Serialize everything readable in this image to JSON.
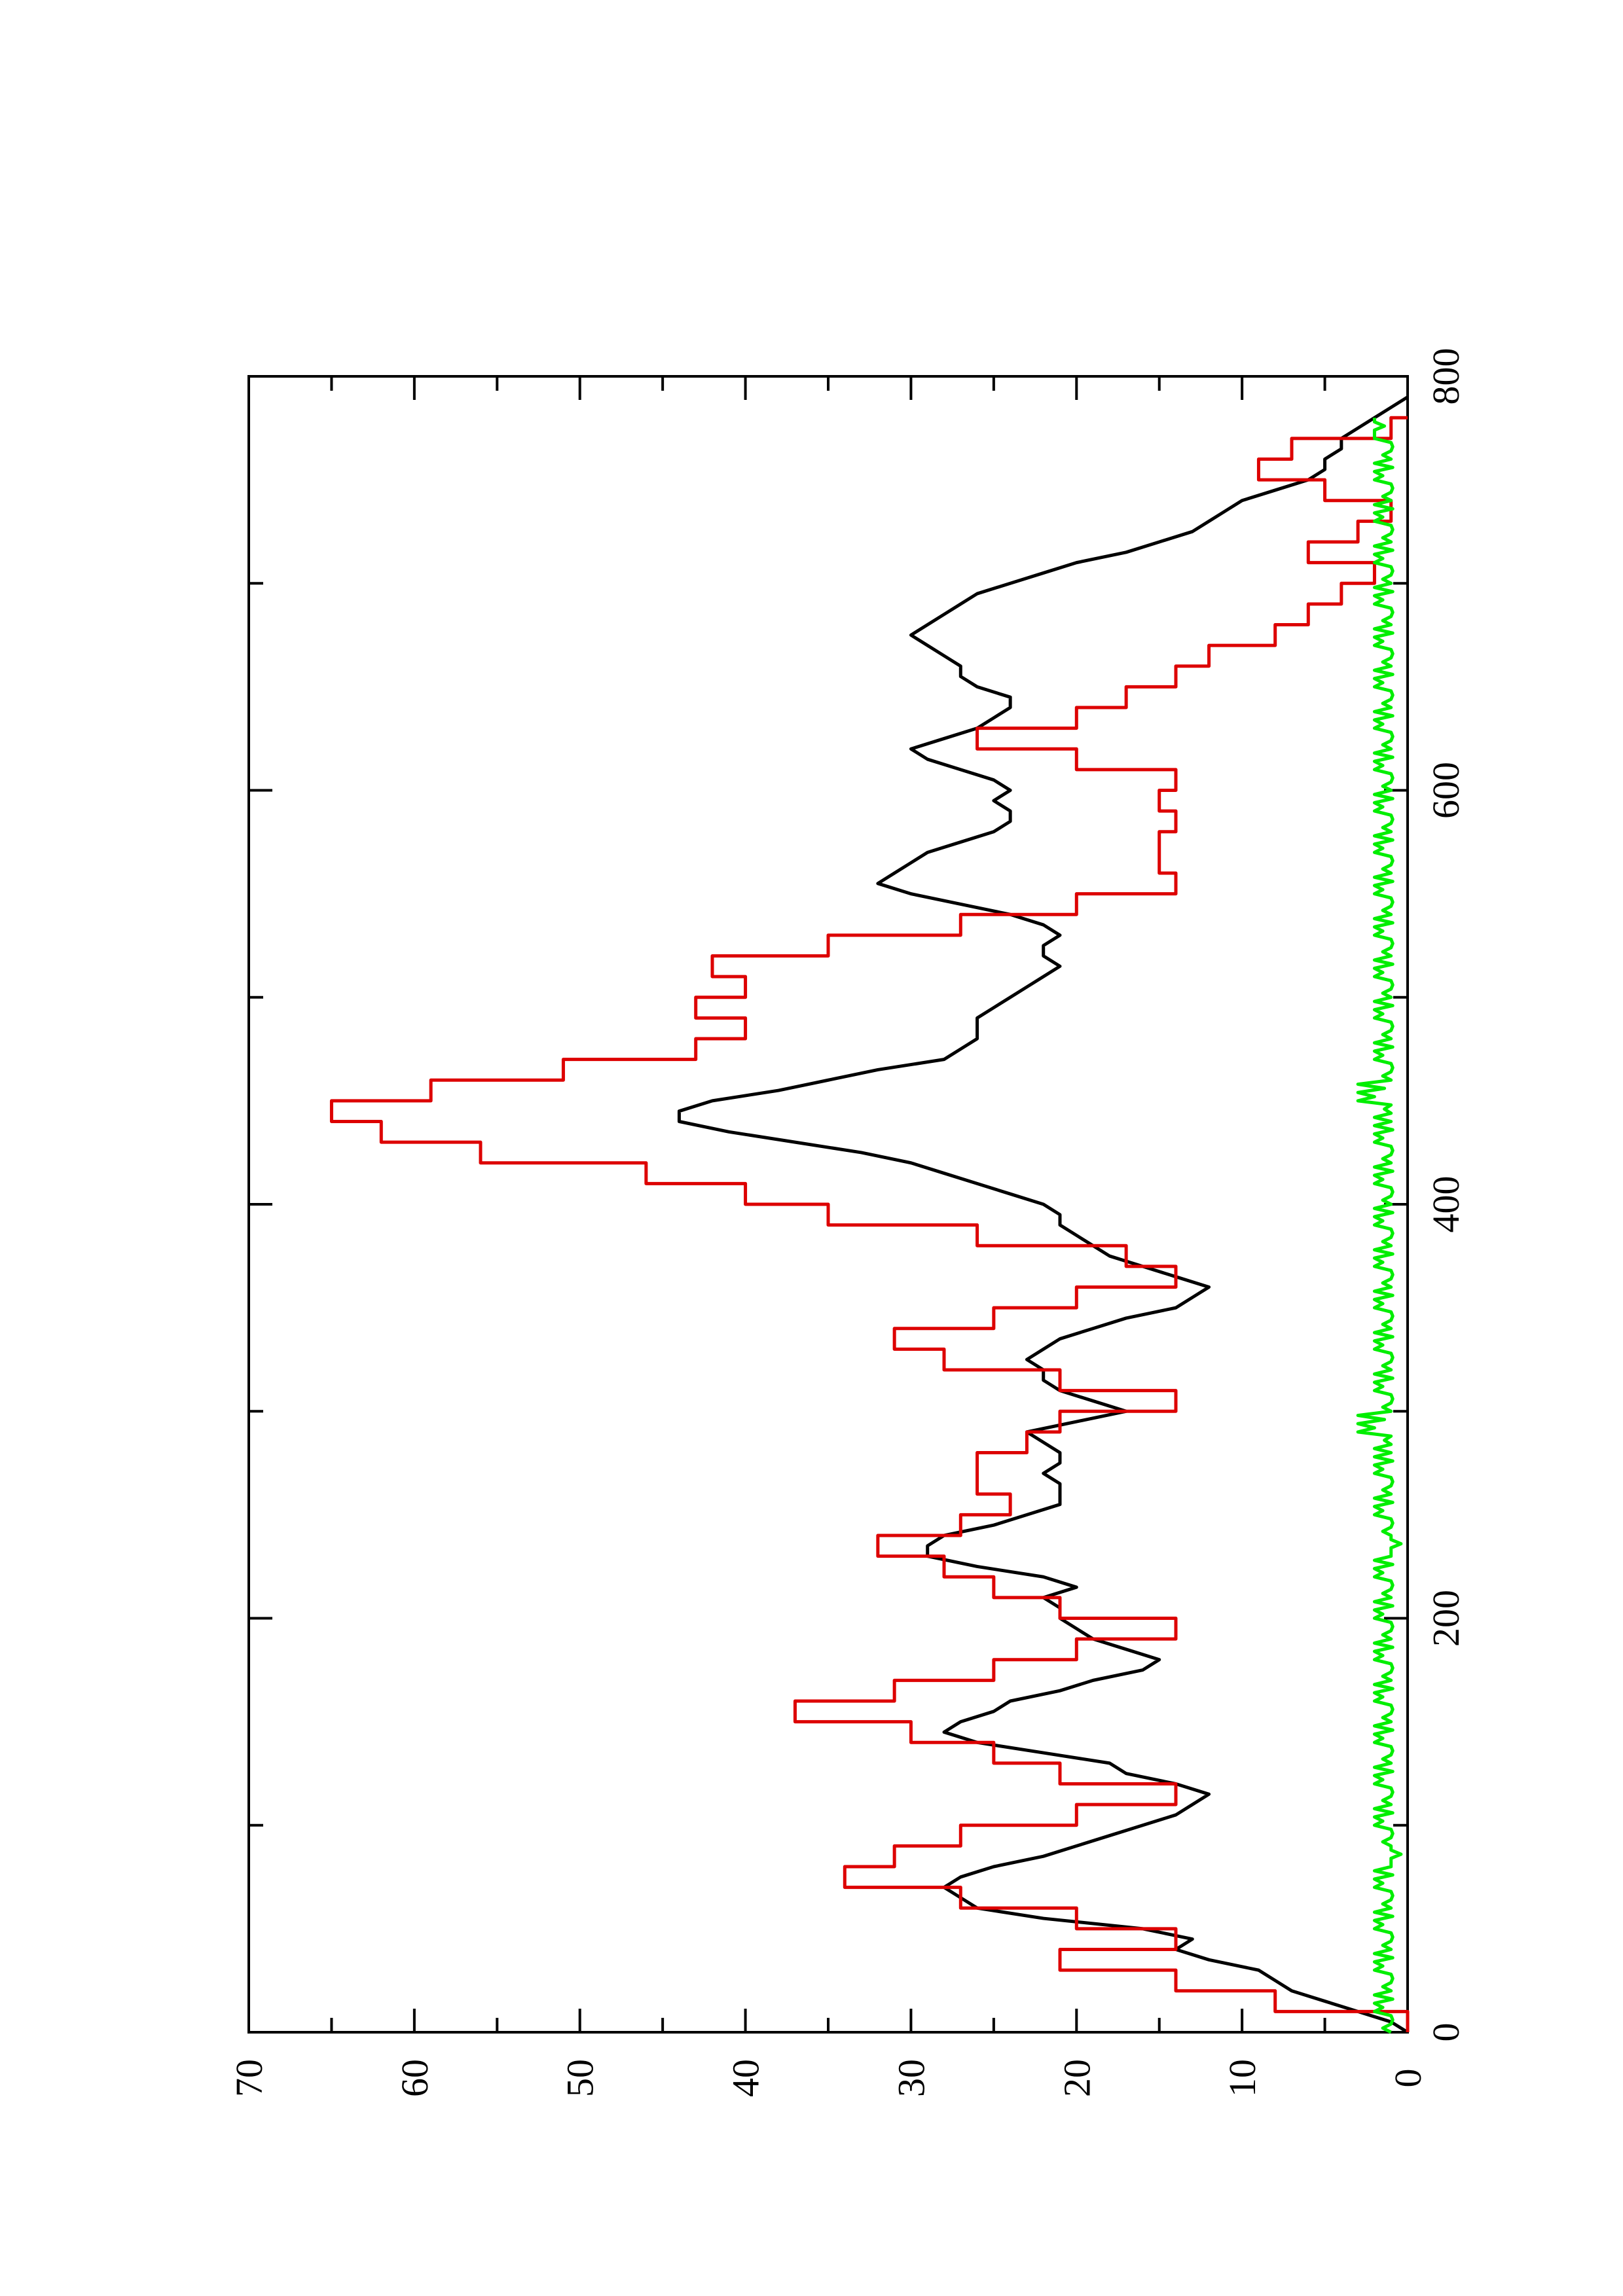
{
  "chart_data": {
    "type": "line",
    "orientation": "rotated-90-ccw",
    "title": "",
    "xlabel": "",
    "ylabel": "",
    "xlim": [
      0,
      800
    ],
    "ylim": [
      0,
      70
    ],
    "x_ticks": [
      "0",
      "200",
      "400",
      "600",
      "800"
    ],
    "y_ticks": [
      "0",
      "10",
      "20",
      "30",
      "40",
      "50",
      "60",
      "70"
    ],
    "grid": false,
    "legend": "none",
    "series": [
      {
        "color": "#000000",
        "style": "smooth",
        "points": [
          [
            0,
            0
          ],
          [
            5,
            1
          ],
          [
            10,
            3
          ],
          [
            15,
            5
          ],
          [
            20,
            7
          ],
          [
            25,
            8
          ],
          [
            30,
            9
          ],
          [
            35,
            12
          ],
          [
            40,
            14
          ],
          [
            45,
            13
          ],
          [
            50,
            16
          ],
          [
            55,
            22
          ],
          [
            60,
            26
          ],
          [
            65,
            27
          ],
          [
            70,
            28
          ],
          [
            75,
            27
          ],
          [
            80,
            25
          ],
          [
            85,
            22
          ],
          [
            90,
            20
          ],
          [
            95,
            18
          ],
          [
            100,
            16
          ],
          [
            105,
            14
          ],
          [
            110,
            13
          ],
          [
            115,
            12
          ],
          [
            120,
            14
          ],
          [
            125,
            17
          ],
          [
            130,
            18
          ],
          [
            135,
            22
          ],
          [
            140,
            26
          ],
          [
            145,
            28
          ],
          [
            150,
            27
          ],
          [
            155,
            25
          ],
          [
            160,
            24
          ],
          [
            165,
            21
          ],
          [
            170,
            19
          ],
          [
            175,
            16
          ],
          [
            180,
            15
          ],
          [
            185,
            17
          ],
          [
            190,
            19
          ],
          [
            195,
            20
          ],
          [
            200,
            21
          ],
          [
            205,
            21
          ],
          [
            210,
            22
          ],
          [
            215,
            20
          ],
          [
            220,
            22
          ],
          [
            225,
            26
          ],
          [
            230,
            29
          ],
          [
            235,
            29
          ],
          [
            240,
            28
          ],
          [
            245,
            25
          ],
          [
            250,
            23
          ],
          [
            255,
            21
          ],
          [
            260,
            21
          ],
          [
            265,
            21
          ],
          [
            270,
            22
          ],
          [
            275,
            21
          ],
          [
            280,
            21
          ],
          [
            285,
            22
          ],
          [
            290,
            23
          ],
          [
            295,
            20
          ],
          [
            300,
            17
          ],
          [
            305,
            19
          ],
          [
            310,
            21
          ],
          [
            315,
            22
          ],
          [
            320,
            22
          ],
          [
            325,
            23
          ],
          [
            330,
            22
          ],
          [
            335,
            21
          ],
          [
            340,
            19
          ],
          [
            345,
            17
          ],
          [
            350,
            14
          ],
          [
            355,
            13
          ],
          [
            360,
            12
          ],
          [
            365,
            14
          ],
          [
            370,
            16
          ],
          [
            375,
            18
          ],
          [
            380,
            19
          ],
          [
            385,
            20
          ],
          [
            390,
            21
          ],
          [
            395,
            21
          ],
          [
            400,
            22
          ],
          [
            405,
            24
          ],
          [
            410,
            26
          ],
          [
            415,
            28
          ],
          [
            420,
            30
          ],
          [
            425,
            33
          ],
          [
            430,
            37
          ],
          [
            435,
            41
          ],
          [
            440,
            44
          ],
          [
            445,
            44
          ],
          [
            450,
            42
          ],
          [
            455,
            38
          ],
          [
            460,
            35
          ],
          [
            465,
            32
          ],
          [
            470,
            28
          ],
          [
            475,
            27
          ],
          [
            480,
            26
          ],
          [
            485,
            26
          ],
          [
            490,
            26
          ],
          [
            495,
            25
          ],
          [
            500,
            24
          ],
          [
            505,
            23
          ],
          [
            510,
            22
          ],
          [
            515,
            21
          ],
          [
            520,
            22
          ],
          [
            525,
            22
          ],
          [
            530,
            21
          ],
          [
            535,
            22
          ],
          [
            540,
            24
          ],
          [
            545,
            27
          ],
          [
            550,
            30
          ],
          [
            555,
            32
          ],
          [
            560,
            31
          ],
          [
            565,
            30
          ],
          [
            570,
            29
          ],
          [
            575,
            27
          ],
          [
            580,
            25
          ],
          [
            585,
            24
          ],
          [
            590,
            24
          ],
          [
            595,
            25
          ],
          [
            600,
            24
          ],
          [
            605,
            25
          ],
          [
            610,
            27
          ],
          [
            615,
            29
          ],
          [
            620,
            30
          ],
          [
            625,
            28
          ],
          [
            630,
            26
          ],
          [
            635,
            25
          ],
          [
            640,
            24
          ],
          [
            645,
            24
          ],
          [
            650,
            26
          ],
          [
            655,
            27
          ],
          [
            660,
            27
          ],
          [
            665,
            28
          ],
          [
            670,
            29
          ],
          [
            675,
            30
          ],
          [
            680,
            29
          ],
          [
            685,
            28
          ],
          [
            690,
            27
          ],
          [
            695,
            26
          ],
          [
            700,
            24
          ],
          [
            705,
            22
          ],
          [
            710,
            20
          ],
          [
            715,
            17
          ],
          [
            720,
            15
          ],
          [
            725,
            13
          ],
          [
            730,
            12
          ],
          [
            735,
            11
          ],
          [
            740,
            10
          ],
          [
            745,
            8
          ],
          [
            750,
            6
          ],
          [
            755,
            5
          ],
          [
            760,
            5
          ],
          [
            765,
            4
          ],
          [
            770,
            4
          ],
          [
            775,
            3
          ],
          [
            780,
            2
          ],
          [
            785,
            1
          ],
          [
            790,
            0
          ]
        ]
      },
      {
        "color": "#dd0000",
        "style": "stepped",
        "points": [
          [
            0,
            0
          ],
          [
            10,
            8
          ],
          [
            20,
            14
          ],
          [
            30,
            21
          ],
          [
            40,
            14
          ],
          [
            50,
            20
          ],
          [
            60,
            27
          ],
          [
            70,
            34
          ],
          [
            80,
            31
          ],
          [
            90,
            27
          ],
          [
            100,
            20
          ],
          [
            110,
            14
          ],
          [
            120,
            21
          ],
          [
            130,
            25
          ],
          [
            140,
            30
          ],
          [
            150,
            37
          ],
          [
            160,
            31
          ],
          [
            170,
            25
          ],
          [
            180,
            20
          ],
          [
            190,
            14
          ],
          [
            200,
            21
          ],
          [
            210,
            25
          ],
          [
            220,
            28
          ],
          [
            230,
            32
          ],
          [
            240,
            27
          ],
          [
            250,
            24
          ],
          [
            260,
            26
          ],
          [
            270,
            26
          ],
          [
            280,
            23
          ],
          [
            290,
            21
          ],
          [
            300,
            14
          ],
          [
            310,
            21
          ],
          [
            320,
            28
          ],
          [
            330,
            31
          ],
          [
            340,
            25
          ],
          [
            350,
            20
          ],
          [
            360,
            14
          ],
          [
            370,
            17
          ],
          [
            380,
            26
          ],
          [
            390,
            35
          ],
          [
            400,
            40
          ],
          [
            410,
            46
          ],
          [
            420,
            56
          ],
          [
            430,
            62
          ],
          [
            440,
            65
          ],
          [
            450,
            59
          ],
          [
            460,
            51
          ],
          [
            470,
            43
          ],
          [
            480,
            40
          ],
          [
            490,
            43
          ],
          [
            500,
            40
          ],
          [
            510,
            42
          ],
          [
            520,
            35
          ],
          [
            530,
            27
          ],
          [
            540,
            20
          ],
          [
            550,
            14
          ],
          [
            560,
            15
          ],
          [
            570,
            15
          ],
          [
            580,
            14
          ],
          [
            590,
            15
          ],
          [
            600,
            14
          ],
          [
            610,
            20
          ],
          [
            620,
            26
          ],
          [
            630,
            20
          ],
          [
            640,
            17
          ],
          [
            650,
            14
          ],
          [
            660,
            12
          ],
          [
            670,
            8
          ],
          [
            680,
            6
          ],
          [
            690,
            4
          ],
          [
            700,
            2
          ],
          [
            710,
            6
          ],
          [
            720,
            3
          ],
          [
            730,
            1
          ],
          [
            740,
            5
          ],
          [
            750,
            9
          ],
          [
            760,
            7
          ],
          [
            770,
            1
          ],
          [
            780,
            0
          ]
        ]
      },
      {
        "color": "#00ee00",
        "style": "noisy",
        "points": [
          [
            0,
            1
          ],
          [
            10,
            2
          ],
          [
            20,
            1
          ],
          [
            30,
            2
          ],
          [
            40,
            1
          ],
          [
            50,
            2
          ],
          [
            60,
            1
          ],
          [
            70,
            2
          ],
          [
            80,
            1
          ],
          [
            90,
            1
          ],
          [
            100,
            2
          ],
          [
            110,
            1
          ],
          [
            120,
            2
          ],
          [
            130,
            1
          ],
          [
            140,
            2
          ],
          [
            150,
            1
          ],
          [
            160,
            2
          ],
          [
            170,
            1
          ],
          [
            180,
            2
          ],
          [
            190,
            1
          ],
          [
            200,
            2
          ],
          [
            210,
            1
          ],
          [
            220,
            2
          ],
          [
            230,
            1
          ],
          [
            240,
            1
          ],
          [
            250,
            2
          ],
          [
            260,
            1
          ],
          [
            270,
            2
          ],
          [
            280,
            1
          ],
          [
            290,
            3
          ],
          [
            300,
            1
          ],
          [
            310,
            2
          ],
          [
            320,
            1
          ],
          [
            330,
            2
          ],
          [
            340,
            1
          ],
          [
            350,
            2
          ],
          [
            360,
            1
          ],
          [
            370,
            2
          ],
          [
            380,
            1
          ],
          [
            390,
            2
          ],
          [
            400,
            1
          ],
          [
            410,
            2
          ],
          [
            420,
            1
          ],
          [
            430,
            2
          ],
          [
            440,
            1
          ],
          [
            450,
            3
          ],
          [
            460,
            1
          ],
          [
            470,
            2
          ],
          [
            480,
            1
          ],
          [
            490,
            2
          ],
          [
            500,
            1
          ],
          [
            510,
            2
          ],
          [
            520,
            1
          ],
          [
            530,
            2
          ],
          [
            540,
            1
          ],
          [
            550,
            2
          ],
          [
            560,
            1
          ],
          [
            570,
            2
          ],
          [
            580,
            1
          ],
          [
            590,
            2
          ],
          [
            600,
            1
          ],
          [
            610,
            2
          ],
          [
            620,
            1
          ],
          [
            630,
            2
          ],
          [
            640,
            1
          ],
          [
            650,
            2
          ],
          [
            660,
            1
          ],
          [
            670,
            2
          ],
          [
            680,
            1
          ],
          [
            690,
            2
          ],
          [
            700,
            1
          ],
          [
            710,
            2
          ],
          [
            720,
            1
          ],
          [
            730,
            2
          ],
          [
            740,
            1
          ],
          [
            750,
            2
          ],
          [
            760,
            1
          ],
          [
            770,
            2
          ],
          [
            780,
            2
          ]
        ]
      }
    ]
  }
}
